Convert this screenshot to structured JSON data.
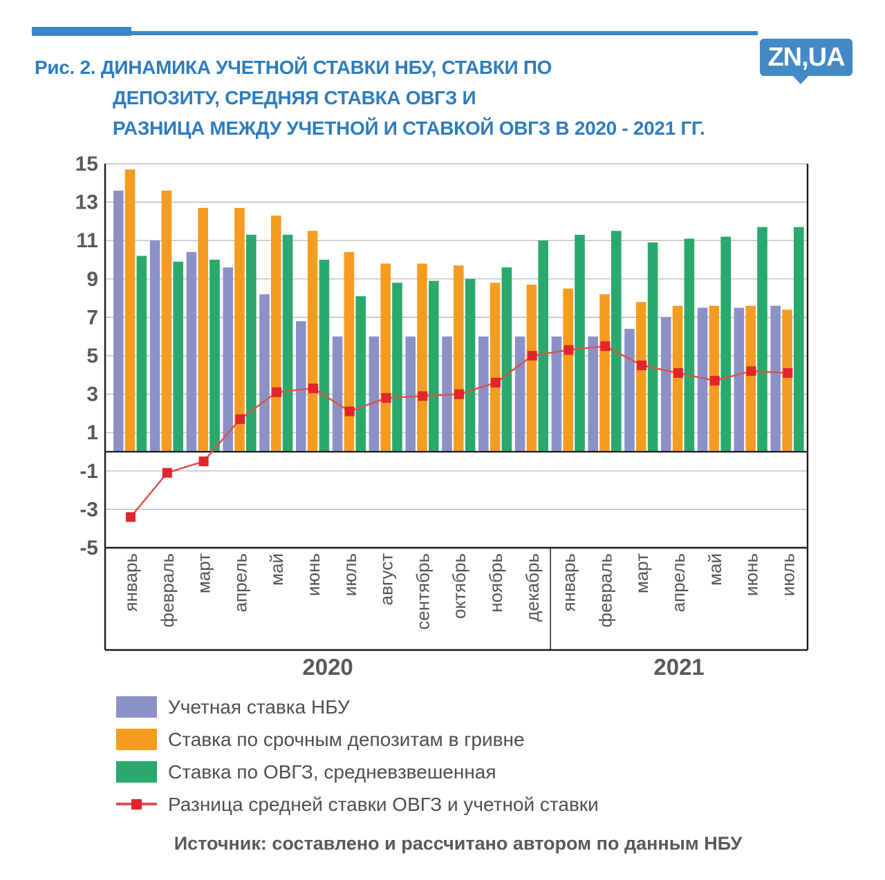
{
  "header": {
    "figure_label": "Рис. 2.",
    "title_lines": [
      "Рис. 2. ДИНАМИКА УЧЕТНОЙ СТАВКИ НБУ, СТАВКИ ПО",
      "ДЕПОЗИТУ, СРЕДНЯЯ СТАВКА ОВГЗ И",
      "РАЗНИЦА МЕЖДУ УЧЕТНОЙ И СТАВКОЙ ОВГЗ В 2020 - 2021 ГГ."
    ],
    "logo_text": "ZN,UA"
  },
  "colors": {
    "title_blue": "#2E7CBE",
    "logo_blue": "#4389C7",
    "rule_blue": "#3A86C8",
    "axis_text": "#58595B",
    "month_text": "#555555",
    "grid": "#B0B0B0",
    "axis_line": "#1A1A1A",
    "legend_text": "#4F4F4F"
  },
  "chart_data": {
    "type": "bar",
    "title": "Динамика учетной ставки НБУ, ставки по депозиту, средняя ставка ОВГЗ и разница между учетной и ставкой ОВГЗ в 2020 - 2021 гг.",
    "categories": [
      "январь",
      "февраль",
      "март",
      "апрель",
      "май",
      "июнь",
      "июль",
      "август",
      "сентябрь",
      "октябрь",
      "ноябрь",
      "декабрь",
      "январь",
      "февраль",
      "март",
      "апрель",
      "май",
      "июнь",
      "июль"
    ],
    "year_groups": [
      {
        "label": "2020",
        "months": 12
      },
      {
        "label": "2021",
        "months": 7
      }
    ],
    "series": [
      {
        "name": "Учетная ставка НБУ",
        "type": "bar",
        "color": "#8B91C7",
        "values": [
          13.6,
          11.0,
          10.4,
          9.6,
          8.2,
          6.8,
          6.0,
          6.0,
          6.0,
          6.0,
          6.0,
          6.0,
          6.0,
          6.0,
          6.4,
          7.0,
          7.5,
          7.5,
          7.6
        ]
      },
      {
        "name": "Ставка по срочным депозитам в гривне",
        "type": "bar",
        "color": "#F59C20",
        "values": [
          14.7,
          13.6,
          12.7,
          12.7,
          12.3,
          11.5,
          10.4,
          9.8,
          9.8,
          9.7,
          8.8,
          8.7,
          8.5,
          8.2,
          7.8,
          7.6,
          7.6,
          7.6,
          7.4
        ]
      },
      {
        "name": "Ставка по ОВГЗ, средневзвешенная",
        "type": "bar",
        "color": "#29A96B",
        "values": [
          10.2,
          9.9,
          10.0,
          11.3,
          11.3,
          10.0,
          8.1,
          8.8,
          8.9,
          9.0,
          9.6,
          11.0,
          11.3,
          11.5,
          10.9,
          11.1,
          11.2,
          11.7,
          11.7
        ]
      },
      {
        "name": "Разница средней ставки ОВГЗ и учетной ставки",
        "type": "line",
        "color": "#E3242B",
        "line_color": "#D8544E",
        "values": [
          -3.4,
          -1.1,
          -0.5,
          1.7,
          3.1,
          3.3,
          2.1,
          2.8,
          2.9,
          3.0,
          3.6,
          5.0,
          5.3,
          5.5,
          4.5,
          4.1,
          3.7,
          4.2,
          4.1
        ]
      }
    ],
    "y_ticks": [
      15,
      13,
      11,
      9,
      7,
      5,
      3,
      1,
      -1,
      -3,
      -5
    ],
    "ylim": [
      -5,
      15
    ],
    "grid": true,
    "legend_position": "bottom"
  },
  "source": {
    "text": "Источник: составлено и рассчитано автором по данным НБУ"
  }
}
